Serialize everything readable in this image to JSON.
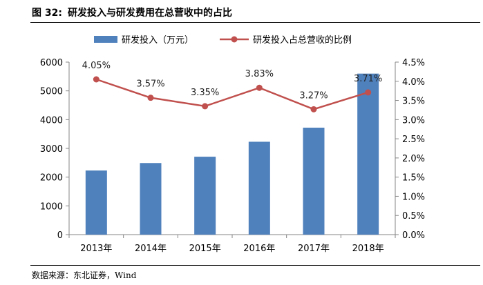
{
  "figure": {
    "label": "图 32:",
    "title": "研发投入与研发费用在总营收中的占比",
    "source": "数据来源：东北证券，Wind"
  },
  "colors": {
    "bar": "#4f81bd",
    "line": "#c0504d",
    "axis": "#868686"
  },
  "chart_data": {
    "type": "bar+line",
    "categories": [
      "2013年",
      "2014年",
      "2015年",
      "2016年",
      "2017年",
      "2018年"
    ],
    "series": [
      {
        "name": "研发投入（万元）",
        "type": "bar",
        "axis": "left",
        "values": [
          2230,
          2490,
          2710,
          3230,
          3720,
          5600
        ]
      },
      {
        "name": "研发投入占总营收的比例",
        "type": "line",
        "axis": "right",
        "values": [
          4.05,
          3.57,
          3.35,
          3.83,
          3.27,
          3.71
        ],
        "labels": [
          "4.05%",
          "3.57%",
          "3.35%",
          "3.83%",
          "3.27%",
          "3.71%"
        ]
      }
    ],
    "y_left": {
      "min": 0,
      "max": 6000,
      "step": 1000,
      "ticks": [
        "0",
        "1000",
        "2000",
        "3000",
        "4000",
        "5000",
        "6000"
      ]
    },
    "y_right": {
      "min": 0,
      "max": 4.5,
      "step": 0.5,
      "ticks": [
        "0.0%",
        "0.5%",
        "1.0%",
        "1.5%",
        "2.0%",
        "2.5%",
        "3.0%",
        "3.5%",
        "4.0%",
        "4.5%"
      ]
    },
    "legend_position": "top",
    "grid": false
  }
}
